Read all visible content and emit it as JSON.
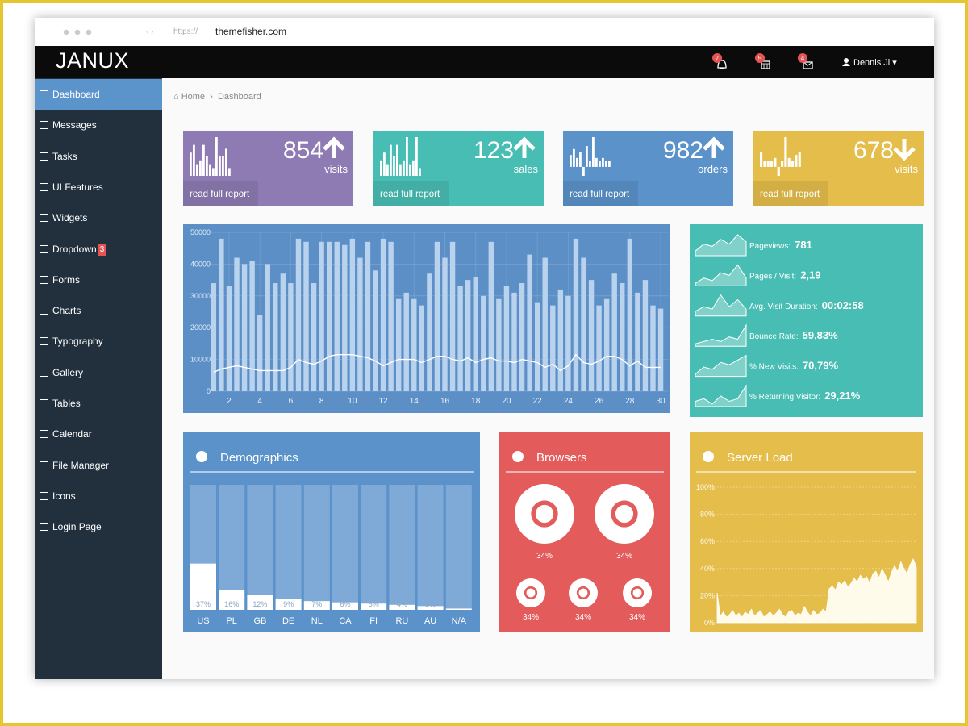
{
  "browser": {
    "protocol": "https://",
    "url": "themefisher.com"
  },
  "header": {
    "brand": "JANUX",
    "badges": [
      7,
      5,
      4
    ],
    "user": "Dennis Ji"
  },
  "sidebar": [
    {
      "label": "Dashboard",
      "active": true
    },
    {
      "label": "Messages"
    },
    {
      "label": "Tasks"
    },
    {
      "label": "UI Features"
    },
    {
      "label": "Widgets"
    },
    {
      "label": "Dropdown",
      "badge": 3
    },
    {
      "label": "Forms"
    },
    {
      "label": "Charts"
    },
    {
      "label": "Typography"
    },
    {
      "label": "Gallery"
    },
    {
      "label": "Tables"
    },
    {
      "label": "Calendar"
    },
    {
      "label": "File Manager"
    },
    {
      "label": "Icons"
    },
    {
      "label": "Login Page"
    }
  ],
  "breadcrumb": [
    "Home",
    "Dashboard"
  ],
  "stat_boxes": [
    {
      "value": 854,
      "label": "visits",
      "link": "read full report",
      "trend": "up",
      "color": "#8e7bb3",
      "bars": [
        6,
        8,
        3,
        4,
        8,
        5,
        3,
        2,
        10,
        5,
        5,
        7,
        2
      ]
    },
    {
      "value": 123,
      "label": "sales",
      "link": "read full report",
      "trend": "up",
      "color": "#48bdb3",
      "bars": [
        4,
        6,
        3,
        8,
        5,
        8,
        3,
        4,
        10,
        3,
        4,
        10,
        2
      ]
    },
    {
      "value": 982,
      "label": "orders",
      "link": "read full report",
      "trend": "up",
      "color": "#5b92c9",
      "bars": [
        4,
        6,
        3,
        5,
        -3,
        7,
        2,
        10,
        3,
        2,
        3,
        2,
        2
      ]
    },
    {
      "value": 678,
      "label": "visits",
      "link": "read full report",
      "trend": "down",
      "color": "#e4bd4a",
      "bars": [
        5,
        2,
        2,
        2,
        3,
        -3,
        2,
        10,
        3,
        2,
        4,
        5
      ]
    }
  ],
  "chart_data": [
    {
      "type": "bar",
      "color": "#5b8fc6",
      "x": [
        1,
        1.5,
        2,
        2.5,
        3,
        3.5,
        4,
        4.5,
        5,
        5.5,
        6,
        6.5,
        7,
        7.5,
        8,
        8.5,
        9,
        9.5,
        10,
        10.5,
        11,
        11.5,
        12,
        12.5,
        13,
        13.5,
        14,
        14.5,
        15,
        15.5,
        16,
        16.5,
        17,
        17.5,
        18,
        18.5,
        19,
        19.5,
        20,
        20.5,
        21,
        21.5,
        22,
        22.5,
        23,
        23.5,
        24,
        24.5,
        25,
        25.5,
        26,
        26.5,
        27,
        27.5,
        28,
        28.5,
        29,
        29.5,
        30
      ],
      "series": [
        {
          "type": "bar",
          "color": "#b9d2ee",
          "values": [
            34000,
            48000,
            33000,
            42000,
            40000,
            41000,
            24000,
            40000,
            34000,
            37000,
            34000,
            48000,
            47000,
            34000,
            47000,
            47000,
            47000,
            46000,
            48000,
            42000,
            47000,
            38000,
            48000,
            47000,
            29000,
            31000,
            29000,
            27000,
            37000,
            47000,
            42000,
            47000,
            33000,
            35000,
            36000,
            30000,
            47000,
            29000,
            33000,
            31000,
            34000,
            43000,
            28000,
            42000,
            27000,
            32000,
            30000,
            48000,
            42000,
            35000,
            27000,
            29000,
            37000,
            34000,
            48000,
            31000,
            35000,
            27000,
            26000
          ]
        },
        {
          "type": "line",
          "color": "#ffffff",
          "values": [
            6000,
            7000,
            7500,
            8000,
            7500,
            7000,
            6500,
            6500,
            6500,
            6500,
            7500,
            10000,
            9000,
            8500,
            9500,
            11000,
            11500,
            11500,
            11500,
            11000,
            10500,
            9500,
            8000,
            9000,
            10000,
            10000,
            10000,
            9000,
            10000,
            11000,
            11000,
            10000,
            9500,
            10500,
            9000,
            10000,
            10500,
            9500,
            9500,
            9000,
            10000,
            9500,
            9000,
            7500,
            8500,
            6500,
            8000,
            11500,
            9000,
            8500,
            9500,
            11000,
            11000,
            10000,
            8000,
            9500,
            7500,
            7500,
            7500
          ]
        }
      ],
      "xlim": [
        0.5,
        30.5
      ],
      "xticks": [
        2,
        4,
        6,
        8,
        10,
        12,
        14,
        16,
        18,
        20,
        22,
        24,
        26,
        28,
        30
      ],
      "ylim": [
        0,
        50000
      ],
      "yticks": [
        0,
        10000,
        20000,
        30000,
        40000,
        50000
      ],
      "grid": true
    },
    {
      "type": "bar",
      "title": "Demographics",
      "color": "#5b92c9",
      "bar_color": "#ffffff",
      "track_color": "#7faad8",
      "categories": [
        "US",
        "PL",
        "GB",
        "DE",
        "NL",
        "CA",
        "FI",
        "RU",
        "AU",
        "N/A"
      ],
      "values": [
        37,
        16,
        12,
        9,
        7,
        6,
        5,
        4,
        3,
        1
      ],
      "value_labels": [
        "37%",
        "16%",
        "12%",
        "9%",
        "7%",
        "6%",
        "5%",
        "4%",
        "3%",
        "1%"
      ],
      "ylim": [
        0,
        100
      ]
    },
    {
      "type": "area",
      "title": "Server Load",
      "color": "#e4bd4a",
      "fill": "#fffbea",
      "values": [
        22,
        5,
        8,
        4,
        6,
        9,
        5,
        7,
        4,
        8,
        6,
        10,
        5,
        7,
        9,
        4,
        6,
        8,
        5,
        7,
        10,
        6,
        4,
        8,
        9,
        5,
        7,
        6,
        12,
        8,
        5,
        9,
        6,
        7,
        10,
        8,
        25,
        27,
        24,
        30,
        28,
        31,
        26,
        29,
        33,
        30,
        35,
        32,
        34,
        29,
        36,
        38,
        33,
        40,
        35,
        30,
        37,
        42,
        38,
        45,
        40,
        36,
        43,
        47,
        41
      ],
      "ylim": [
        0,
        100
      ],
      "yticks": [
        {
          "value": 0,
          "label": "0%"
        },
        {
          "value": 20,
          "label": "20%"
        },
        {
          "value": 40,
          "label": "40%"
        },
        {
          "value": 60,
          "label": "60%"
        },
        {
          "value": 80,
          "label": "80%"
        },
        {
          "value": 100,
          "label": "100%"
        }
      ],
      "grid": true
    }
  ],
  "stats_panel": {
    "color": "#48bdb3",
    "items": [
      {
        "label": "Pageviews:",
        "value": "781",
        "spark": [
          2,
          5,
          4,
          7,
          5,
          9,
          6
        ]
      },
      {
        "label": "Pages / Visit:",
        "value": "2,19",
        "spark": [
          1,
          3,
          2,
          5,
          4,
          8,
          3
        ]
      },
      {
        "label": "Avg. Visit Duration:",
        "value": "00:02:58",
        "spark": [
          2,
          4,
          3,
          9,
          4,
          7,
          3
        ]
      },
      {
        "label": "Bounce Rate:",
        "value": "59,83%",
        "spark": [
          1,
          2,
          3,
          2,
          4,
          3,
          9
        ]
      },
      {
        "label": "% New Visits:",
        "value": "70,79%",
        "spark": [
          1,
          4,
          3,
          6,
          5,
          7,
          9
        ]
      },
      {
        "label": "% Returning Visitor:",
        "value": "29,21%",
        "spark": [
          2,
          3,
          1,
          4,
          2,
          3,
          8
        ]
      }
    ]
  },
  "browsers": {
    "title": "Browsers",
    "color": "#e45b5b",
    "items": [
      "34%",
      "34%",
      "34%",
      "34%",
      "34%"
    ]
  }
}
